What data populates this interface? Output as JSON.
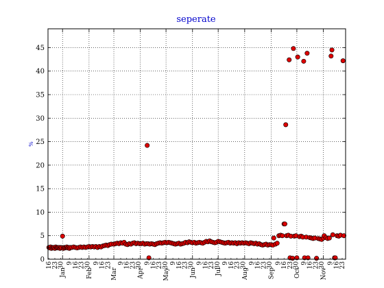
{
  "chart_data": {
    "type": "scatter",
    "title": "seperate",
    "ylabel": "%",
    "xlabel": "",
    "ylim": [
      0,
      49
    ],
    "yticks": [
      0,
      5,
      10,
      15,
      20,
      25,
      30,
      35,
      40,
      45
    ],
    "xlim": [
      "2011-12-15",
      "2012-11-27"
    ],
    "month_ticks": [
      {
        "date": "2012-01-01",
        "label": "Jan"
      },
      {
        "date": "2012-02-01",
        "label": "Feb"
      },
      {
        "date": "2012-03-01",
        "label": "Mar"
      },
      {
        "date": "2012-04-01",
        "label": "Apr"
      },
      {
        "date": "2012-05-01",
        "label": "May"
      },
      {
        "date": "2012-06-01",
        "label": "Jun"
      },
      {
        "date": "2012-07-01",
        "label": "Jul"
      },
      {
        "date": "2012-08-01",
        "label": "Aug"
      },
      {
        "date": "2012-09-01",
        "label": "Sep"
      },
      {
        "date": "2012-10-01",
        "label": "Oct"
      },
      {
        "date": "2012-11-01",
        "label": "Nov"
      }
    ],
    "day_tick_labels": "1 9 16 23 30",
    "grid": true,
    "marker": {
      "fill": "#dd0000",
      "edge": "#000000"
    },
    "points": [
      [
        "2011-12-16",
        2.5
      ],
      [
        "2011-12-17",
        2.4
      ],
      [
        "2011-12-18",
        2.6
      ],
      [
        "2011-12-19",
        2.3
      ],
      [
        "2011-12-20",
        2.5
      ],
      [
        "2011-12-21",
        2.4
      ],
      [
        "2011-12-22",
        2.5
      ],
      [
        "2011-12-23",
        2.3
      ],
      [
        "2011-12-24",
        2.6
      ],
      [
        "2011-12-25",
        2.4
      ],
      [
        "2011-12-26",
        2.5
      ],
      [
        "2011-12-27",
        2.4
      ],
      [
        "2011-12-28",
        2.5
      ],
      [
        "2011-12-29",
        2.3
      ],
      [
        "2011-12-30",
        2.5
      ],
      [
        "2011-12-31",
        2.4
      ],
      [
        "2012-01-01",
        4.9
      ],
      [
        "2012-01-02",
        2.3
      ],
      [
        "2012-01-03",
        2.5
      ],
      [
        "2012-01-04",
        2.4
      ],
      [
        "2012-01-05",
        2.5
      ],
      [
        "2012-01-06",
        2.6
      ],
      [
        "2012-01-07",
        2.4
      ],
      [
        "2012-01-08",
        2.5
      ],
      [
        "2012-01-09",
        2.3
      ],
      [
        "2012-01-10",
        2.5
      ],
      [
        "2012-01-12",
        2.5
      ],
      [
        "2012-01-14",
        2.6
      ],
      [
        "2012-01-16",
        2.5
      ],
      [
        "2012-01-18",
        2.4
      ],
      [
        "2012-01-20",
        2.5
      ],
      [
        "2012-01-22",
        2.6
      ],
      [
        "2012-01-24",
        2.5
      ],
      [
        "2012-01-26",
        2.6
      ],
      [
        "2012-01-28",
        2.5
      ],
      [
        "2012-01-30",
        2.6
      ],
      [
        "2012-02-01",
        2.7
      ],
      [
        "2012-02-03",
        2.6
      ],
      [
        "2012-02-05",
        2.7
      ],
      [
        "2012-02-07",
        2.6
      ],
      [
        "2012-02-09",
        2.7
      ],
      [
        "2012-02-11",
        2.5
      ],
      [
        "2012-02-13",
        2.7
      ],
      [
        "2012-02-15",
        2.6
      ],
      [
        "2012-02-17",
        2.8
      ],
      [
        "2012-02-19",
        2.9
      ],
      [
        "2012-02-21",
        3.0
      ],
      [
        "2012-02-23",
        2.9
      ],
      [
        "2012-02-25",
        3.1
      ],
      [
        "2012-02-27",
        3.2
      ],
      [
        "2012-03-01",
        3.2
      ],
      [
        "2012-03-03",
        3.3
      ],
      [
        "2012-03-05",
        3.4
      ],
      [
        "2012-03-07",
        3.3
      ],
      [
        "2012-03-09",
        3.5
      ],
      [
        "2012-03-11",
        3.4
      ],
      [
        "2012-03-13",
        3.6
      ],
      [
        "2012-03-15",
        3.2
      ],
      [
        "2012-03-17",
        3.1
      ],
      [
        "2012-03-19",
        3.3
      ],
      [
        "2012-03-21",
        3.2
      ],
      [
        "2012-03-23",
        3.4
      ],
      [
        "2012-03-25",
        3.5
      ],
      [
        "2012-03-27",
        3.3
      ],
      [
        "2012-03-29",
        3.4
      ],
      [
        "2012-03-31",
        3.3
      ],
      [
        "2012-04-02",
        3.3
      ],
      [
        "2012-04-04",
        3.4
      ],
      [
        "2012-04-06",
        3.2
      ],
      [
        "2012-04-08",
        3.3
      ],
      [
        "2012-04-09",
        24.2
      ],
      [
        "2012-04-10",
        3.3
      ],
      [
        "2012-04-11",
        0.3
      ],
      [
        "2012-04-12",
        3.2
      ],
      [
        "2012-04-14",
        3.3
      ],
      [
        "2012-04-16",
        3.2
      ],
      [
        "2012-04-18",
        3.1
      ],
      [
        "2012-04-20",
        3.3
      ],
      [
        "2012-04-22",
        3.4
      ],
      [
        "2012-04-24",
        3.5
      ],
      [
        "2012-04-26",
        3.4
      ],
      [
        "2012-04-28",
        3.5
      ],
      [
        "2012-04-30",
        3.6
      ],
      [
        "2012-05-02",
        3.5
      ],
      [
        "2012-05-04",
        3.6
      ],
      [
        "2012-05-06",
        3.5
      ],
      [
        "2012-05-08",
        3.4
      ],
      [
        "2012-05-10",
        3.3
      ],
      [
        "2012-05-12",
        3.2
      ],
      [
        "2012-05-14",
        3.3
      ],
      [
        "2012-05-16",
        3.4
      ],
      [
        "2012-05-18",
        3.2
      ],
      [
        "2012-05-20",
        3.3
      ],
      [
        "2012-05-22",
        3.4
      ],
      [
        "2012-05-24",
        3.6
      ],
      [
        "2012-05-26",
        3.5
      ],
      [
        "2012-05-28",
        3.7
      ],
      [
        "2012-05-30",
        3.6
      ],
      [
        "2012-06-01",
        3.5
      ],
      [
        "2012-06-03",
        3.6
      ],
      [
        "2012-06-05",
        3.4
      ],
      [
        "2012-06-07",
        3.5
      ],
      [
        "2012-06-09",
        3.6
      ],
      [
        "2012-06-11",
        3.5
      ],
      [
        "2012-06-13",
        3.4
      ],
      [
        "2012-06-15",
        3.6
      ],
      [
        "2012-06-17",
        3.8
      ],
      [
        "2012-06-19",
        3.7
      ],
      [
        "2012-06-21",
        3.9
      ],
      [
        "2012-06-23",
        3.7
      ],
      [
        "2012-06-25",
        3.6
      ],
      [
        "2012-06-27",
        3.5
      ],
      [
        "2012-06-29",
        3.6
      ],
      [
        "2012-07-01",
        3.8
      ],
      [
        "2012-07-03",
        3.7
      ],
      [
        "2012-07-05",
        3.6
      ],
      [
        "2012-07-07",
        3.5
      ],
      [
        "2012-07-09",
        3.4
      ],
      [
        "2012-07-11",
        3.5
      ],
      [
        "2012-07-13",
        3.6
      ],
      [
        "2012-07-15",
        3.4
      ],
      [
        "2012-07-17",
        3.5
      ],
      [
        "2012-07-19",
        3.4
      ],
      [
        "2012-07-21",
        3.5
      ],
      [
        "2012-07-23",
        3.3
      ],
      [
        "2012-07-25",
        3.5
      ],
      [
        "2012-07-27",
        3.4
      ],
      [
        "2012-07-29",
        3.5
      ],
      [
        "2012-07-31",
        3.4
      ],
      [
        "2012-08-02",
        3.5
      ],
      [
        "2012-08-04",
        3.4
      ],
      [
        "2012-08-06",
        3.3
      ],
      [
        "2012-08-08",
        3.5
      ],
      [
        "2012-08-10",
        3.4
      ],
      [
        "2012-08-12",
        3.3
      ],
      [
        "2012-08-14",
        3.4
      ],
      [
        "2012-08-16",
        3.2
      ],
      [
        "2012-08-18",
        3.3
      ],
      [
        "2012-08-20",
        3.1
      ],
      [
        "2012-08-22",
        3.0
      ],
      [
        "2012-08-24",
        3.1
      ],
      [
        "2012-08-26",
        3.2
      ],
      [
        "2012-08-28",
        3.0
      ],
      [
        "2012-08-30",
        3.1
      ],
      [
        "2012-09-01",
        3.1
      ],
      [
        "2012-09-03",
        3.0
      ],
      [
        "2012-09-04",
        4.5
      ],
      [
        "2012-09-06",
        3.2
      ],
      [
        "2012-09-08",
        3.4
      ],
      [
        "2012-09-10",
        5.0
      ],
      [
        "2012-09-12",
        5.1
      ],
      [
        "2012-09-14",
        5.0
      ],
      [
        "2012-09-16",
        7.5
      ],
      [
        "2012-09-17",
        7.5
      ],
      [
        "2012-09-18",
        28.6
      ],
      [
        "2012-09-19",
        5.0
      ],
      [
        "2012-09-21",
        5.1
      ],
      [
        "2012-09-22",
        42.4
      ],
      [
        "2012-09-23",
        0.3
      ],
      [
        "2012-09-24",
        4.9
      ],
      [
        "2012-09-26",
        0.2
      ],
      [
        "2012-09-27",
        44.8
      ],
      [
        "2012-09-28",
        4.9
      ],
      [
        "2012-09-30",
        5.0
      ],
      [
        "2012-10-01",
        0.3
      ],
      [
        "2012-10-02",
        43.0
      ],
      [
        "2012-10-04",
        4.8
      ],
      [
        "2012-10-06",
        4.9
      ],
      [
        "2012-10-08",
        4.7
      ],
      [
        "2012-10-09",
        42.1
      ],
      [
        "2012-10-10",
        0.3
      ],
      [
        "2012-10-12",
        4.7
      ],
      [
        "2012-10-13",
        43.8
      ],
      [
        "2012-10-14",
        0.3
      ],
      [
        "2012-10-16",
        4.6
      ],
      [
        "2012-10-18",
        4.5
      ],
      [
        "2012-10-20",
        4.4
      ],
      [
        "2012-10-22",
        4.5
      ],
      [
        "2012-10-24",
        0.2
      ],
      [
        "2012-10-26",
        4.4
      ],
      [
        "2012-10-28",
        4.3
      ],
      [
        "2012-10-30",
        4.2
      ],
      [
        "2012-11-01",
        4.5
      ],
      [
        "2012-11-02",
        5.0
      ],
      [
        "2012-11-04",
        4.6
      ],
      [
        "2012-11-06",
        4.4
      ],
      [
        "2012-11-08",
        4.5
      ],
      [
        "2012-11-10",
        43.2
      ],
      [
        "2012-11-11",
        44.5
      ],
      [
        "2012-11-12",
        5.2
      ],
      [
        "2012-11-14",
        0.3
      ],
      [
        "2012-11-15",
        0.3
      ],
      [
        "2012-11-17",
        5.0
      ],
      [
        "2012-11-19",
        4.9
      ],
      [
        "2012-11-21",
        5.1
      ],
      [
        "2012-11-24",
        42.2
      ],
      [
        "2012-11-25",
        5.0
      ]
    ]
  }
}
